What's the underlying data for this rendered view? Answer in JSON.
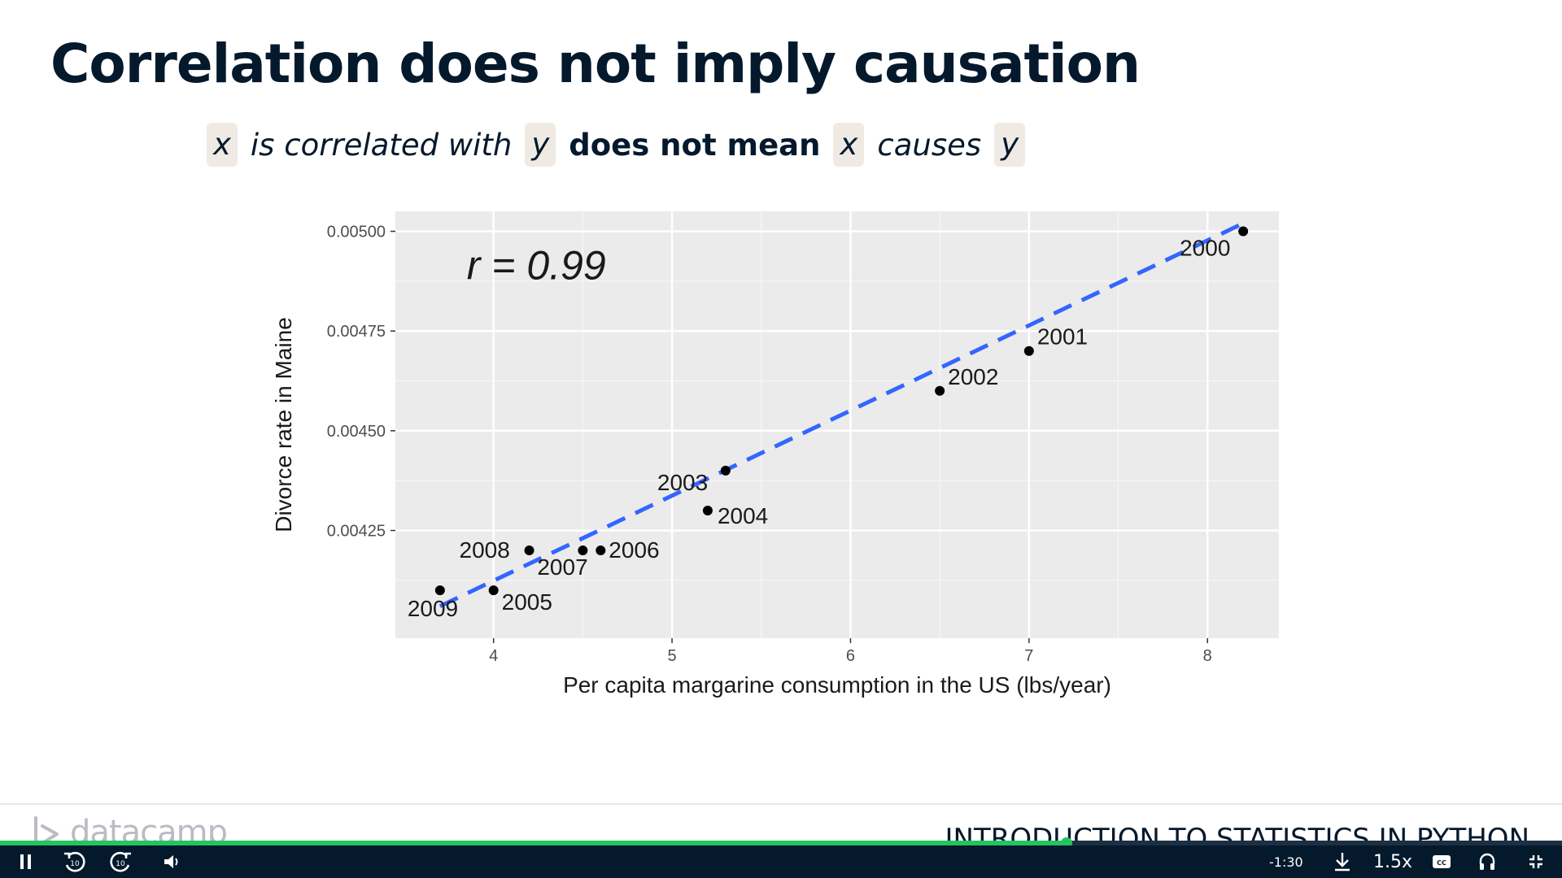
{
  "slide": {
    "title": "Correlation does not imply causation",
    "subtitle": {
      "x1": "x",
      "part1": "is correlated with",
      "y1": "y",
      "part2": "does not mean",
      "x2": "x",
      "part3": "causes",
      "y2": "y"
    }
  },
  "chart_data": {
    "type": "scatter",
    "xlabel": "Per capita margarine consumption in the US (lbs/year)",
    "ylabel": "Divorce rate in Maine",
    "annotation": "r = 0.99",
    "xlim": [
      3.45,
      8.4
    ],
    "ylim": [
      0.00398,
      0.00505
    ],
    "xticks": [
      4,
      5,
      6,
      7,
      8
    ],
    "yticks": [
      0.00425,
      0.0045,
      0.00475,
      0.005
    ],
    "ytick_labels": [
      "0.00425",
      "0.00450",
      "0.00475",
      "0.00500"
    ],
    "grid": true,
    "trendline": {
      "style": "dashed",
      "color": "#3366ff",
      "x": [
        3.7,
        8.2
      ],
      "y": [
        0.00406,
        0.00502
      ]
    },
    "points": [
      {
        "label": "2000",
        "x": 8.2,
        "y": 0.005
      },
      {
        "label": "2001",
        "x": 7.0,
        "y": 0.0047
      },
      {
        "label": "2002",
        "x": 6.5,
        "y": 0.0046
      },
      {
        "label": "2003",
        "x": 5.3,
        "y": 0.0044
      },
      {
        "label": "2004",
        "x": 5.2,
        "y": 0.0043
      },
      {
        "label": "2005",
        "x": 4.0,
        "y": 0.0041
      },
      {
        "label": "2006",
        "x": 4.6,
        "y": 0.0042
      },
      {
        "label": "2007",
        "x": 4.5,
        "y": 0.0042
      },
      {
        "label": "2008",
        "x": 4.2,
        "y": 0.0042
      },
      {
        "label": "2009",
        "x": 3.7,
        "y": 0.0041
      }
    ]
  },
  "footer": {
    "logo_text": "datacamp",
    "course_title": "INTRODUCTION TO STATISTICS IN PYTHON"
  },
  "player": {
    "progress": 0.683,
    "time_remaining": "-1:30",
    "speed": "1.5x",
    "rewind_seconds": "10",
    "forward_seconds": "10",
    "cc_label": "CC"
  }
}
